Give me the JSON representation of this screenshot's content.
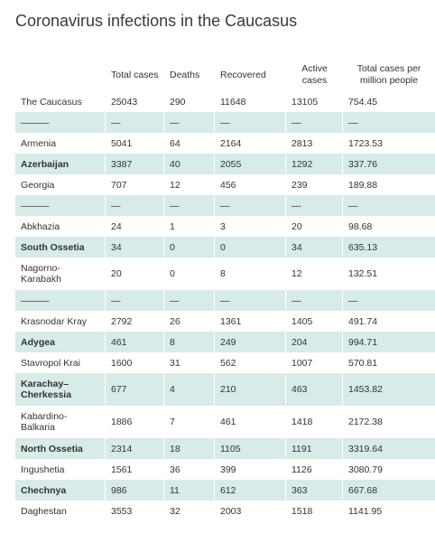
{
  "title": "Coronavirus infections in the Caucasus",
  "headers": [
    "",
    "Total cases",
    "Deaths",
    "Recovered",
    "Active cases",
    "Total cases per million people"
  ],
  "rows": [
    {
      "cells": [
        "The Caucasus",
        "25043",
        "290",
        "11648",
        "13105",
        "754.45"
      ],
      "shaded": false,
      "bold": false,
      "tall": false
    },
    {
      "cells": [
        "———",
        "—",
        "—",
        "—",
        "—",
        "—"
      ],
      "shaded": true,
      "bold": false,
      "tall": false
    },
    {
      "cells": [
        "Armenia",
        "5041",
        "64",
        "2164",
        "2813",
        "1723.53"
      ],
      "shaded": false,
      "bold": false,
      "tall": false
    },
    {
      "cells": [
        "Azerbaijan",
        "3387",
        "40",
        "2055",
        "1292",
        "337.76"
      ],
      "shaded": true,
      "bold": true,
      "tall": false
    },
    {
      "cells": [
        "Georgia",
        "707",
        "12",
        "456",
        "239",
        "189.88"
      ],
      "shaded": false,
      "bold": false,
      "tall": false
    },
    {
      "cells": [
        "———",
        "—",
        "—",
        "—",
        "—",
        "—"
      ],
      "shaded": true,
      "bold": false,
      "tall": false
    },
    {
      "cells": [
        "Abkhazia",
        "24",
        "1",
        "3",
        "20",
        "98.68"
      ],
      "shaded": false,
      "bold": false,
      "tall": false
    },
    {
      "cells": [
        "South Ossetia",
        "34",
        "0",
        "0",
        "34",
        "635.13"
      ],
      "shaded": true,
      "bold": true,
      "tall": false
    },
    {
      "cells": [
        "Nagorno-Karabakh",
        "20",
        "0",
        "8",
        "12",
        "132.51"
      ],
      "shaded": false,
      "bold": false,
      "tall": true
    },
    {
      "cells": [
        "———",
        "—",
        "—",
        "—",
        "—",
        "—"
      ],
      "shaded": true,
      "bold": false,
      "tall": false
    },
    {
      "cells": [
        "Krasnodar Kray",
        "2792",
        "26",
        "1361",
        "1405",
        "491.74"
      ],
      "shaded": false,
      "bold": false,
      "tall": false
    },
    {
      "cells": [
        "Adygea",
        "461",
        "8",
        "249",
        "204",
        "994.71"
      ],
      "shaded": true,
      "bold": true,
      "tall": false
    },
    {
      "cells": [
        "Stavropol Krai",
        "1600",
        "31",
        "562",
        "1007",
        "570.81"
      ],
      "shaded": false,
      "bold": false,
      "tall": false
    },
    {
      "cells": [
        "Karachay–Cherkessia",
        "677",
        "4",
        "210",
        "463",
        "1453.82"
      ],
      "shaded": true,
      "bold": true,
      "tall": true
    },
    {
      "cells": [
        "Kabardino-Balkaria",
        "1886",
        "7",
        "461",
        "1418",
        "2172.38"
      ],
      "shaded": false,
      "bold": false,
      "tall": true
    },
    {
      "cells": [
        "North Ossetia",
        "2314",
        "18",
        "1105",
        "1191",
        "3319.64"
      ],
      "shaded": true,
      "bold": true,
      "tall": false
    },
    {
      "cells": [
        "Ingushetia",
        "1561",
        "36",
        "399",
        "1126",
        "3080.79"
      ],
      "shaded": false,
      "bold": false,
      "tall": false
    },
    {
      "cells": [
        "Chechnya",
        "986",
        "11",
        "612",
        "363",
        "667.68"
      ],
      "shaded": true,
      "bold": true,
      "tall": false
    },
    {
      "cells": [
        "Daghestan",
        "3553",
        "32",
        "2003",
        "1518",
        "1141.95"
      ],
      "shaded": false,
      "bold": false,
      "tall": false
    }
  ]
}
